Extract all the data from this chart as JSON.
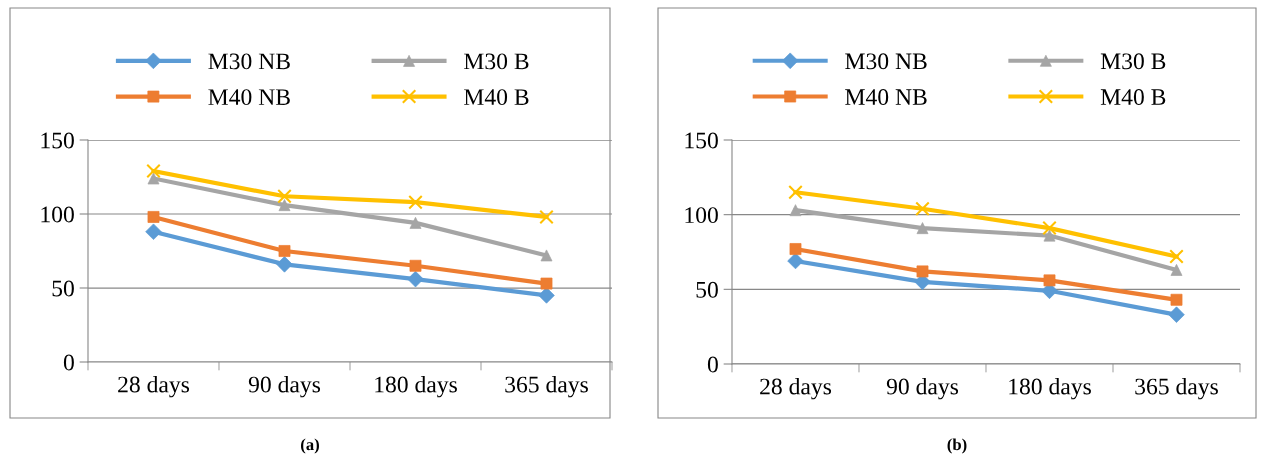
{
  "chart_data": [
    {
      "type": "line",
      "categories": [
        "28 days",
        "90 days",
        "180 days",
        "365 days"
      ],
      "ylim": [
        0,
        150
      ],
      "yticks": [
        0,
        50,
        100,
        150
      ],
      "grid": "y",
      "legend": "top",
      "line_style": "solid",
      "annotations": [
        "(a)"
      ],
      "series": [
        {
          "name": "M30 NB",
          "color": "#5b9bd5",
          "marker": "diamond",
          "values": [
            88,
            66,
            56,
            45
          ]
        },
        {
          "name": "M40 NB",
          "color": "#ed7d31",
          "marker": "square",
          "values": [
            98,
            75,
            65,
            53
          ]
        },
        {
          "name": "M30 B",
          "color": "#a5a5a5",
          "marker": "triangle",
          "values": [
            124,
            106,
            94,
            72
          ]
        },
        {
          "name": "M40 B",
          "color": "#ffc000",
          "marker": "cross",
          "values": [
            129,
            112,
            108,
            98
          ]
        }
      ]
    },
    {
      "type": "line",
      "categories": [
        "28 days",
        "90 days",
        "180 days",
        "365 days"
      ],
      "ylim": [
        0,
        150
      ],
      "yticks": [
        0,
        50,
        100,
        150
      ],
      "grid": "y",
      "legend": "top",
      "line_style": "solid",
      "annotations": [
        "(b)"
      ],
      "series": [
        {
          "name": "M30 NB",
          "color": "#5b9bd5",
          "marker": "diamond",
          "values": [
            69,
            55,
            49,
            33
          ]
        },
        {
          "name": "M40 NB",
          "color": "#ed7d31",
          "marker": "square",
          "values": [
            77,
            62,
            56,
            43
          ]
        },
        {
          "name": "M30 B",
          "color": "#a5a5a5",
          "marker": "triangle",
          "values": [
            103,
            91,
            86,
            63
          ]
        },
        {
          "name": "M40 B",
          "color": "#ffc000",
          "marker": "cross",
          "values": [
            115,
            104,
            91,
            72
          ]
        }
      ]
    }
  ]
}
